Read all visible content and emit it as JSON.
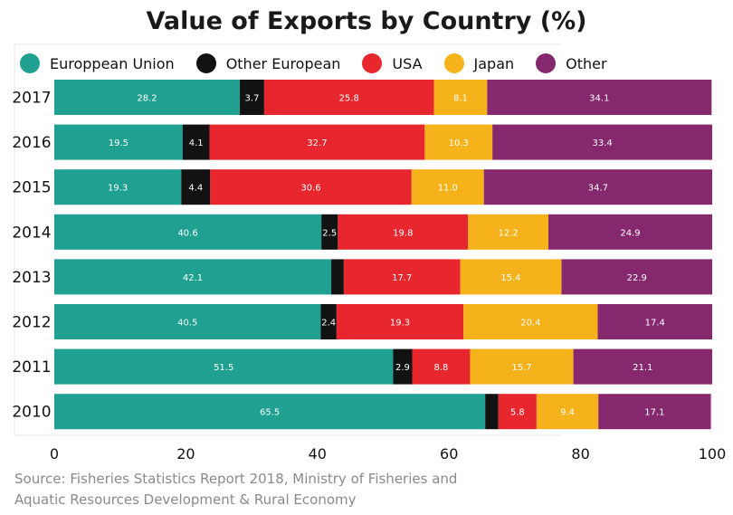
{
  "chart_data": {
    "type": "bar",
    "orientation": "horizontal",
    "stacked": true,
    "title": "Value of Exports by Country (%)",
    "categories": [
      "2017",
      "2016",
      "2015",
      "2014",
      "2013",
      "2012",
      "2011",
      "2010"
    ],
    "series": [
      {
        "name": "Europpean Union",
        "color": "#1fa091",
        "values": [
          28.2,
          19.5,
          19.3,
          40.6,
          42.1,
          40.5,
          51.5,
          65.5
        ],
        "labels": [
          "28.2",
          "19.5",
          "19.3",
          "40.6",
          "42.1",
          "40.5",
          "51.5",
          "65.5"
        ]
      },
      {
        "name": "Other European",
        "color": "#121212",
        "values": [
          3.7,
          4.1,
          4.4,
          2.5,
          1.9,
          2.4,
          2.9,
          2.0
        ],
        "labels": [
          "3.7",
          "4.1",
          "4.4",
          "2.5",
          "",
          "2.4",
          "2.9",
          ""
        ]
      },
      {
        "name": "USA",
        "color": "#e8262d",
        "values": [
          25.8,
          32.7,
          30.6,
          19.8,
          17.7,
          19.3,
          8.8,
          5.8
        ],
        "labels": [
          "25.8",
          "32.7",
          "30.6",
          "19.8",
          "17.7",
          "19.3",
          "8.8",
          "5.8"
        ]
      },
      {
        "name": "Japan",
        "color": "#f6b21b",
        "values": [
          8.1,
          10.3,
          11.0,
          12.2,
          15.4,
          20.4,
          15.7,
          9.4
        ],
        "labels": [
          "8.1",
          "10.3",
          "11.0",
          "12.2",
          "15.4",
          "20.4",
          "15.7",
          "9.4"
        ]
      },
      {
        "name": "Other",
        "color": "#86286e",
        "values": [
          34.1,
          33.4,
          34.7,
          24.9,
          22.9,
          17.4,
          21.1,
          17.1
        ],
        "labels": [
          "34.1",
          "33.4",
          "34.7",
          "24.9",
          "22.9",
          "17.4",
          "21.1",
          "17.1"
        ]
      }
    ],
    "xlim": [
      0,
      100
    ],
    "x_ticks": [
      0,
      20,
      40,
      60,
      80,
      100
    ],
    "x_tick_labels": [
      "0",
      "20",
      "40",
      "60",
      "80",
      "100"
    ],
    "grid": false,
    "legend_position": "top"
  },
  "source_line1": "Source: Fisheries Statistics Report 2018, Ministry of Fisheries and",
  "source_line2": "Aquatic Resources Development & Rural Economy"
}
